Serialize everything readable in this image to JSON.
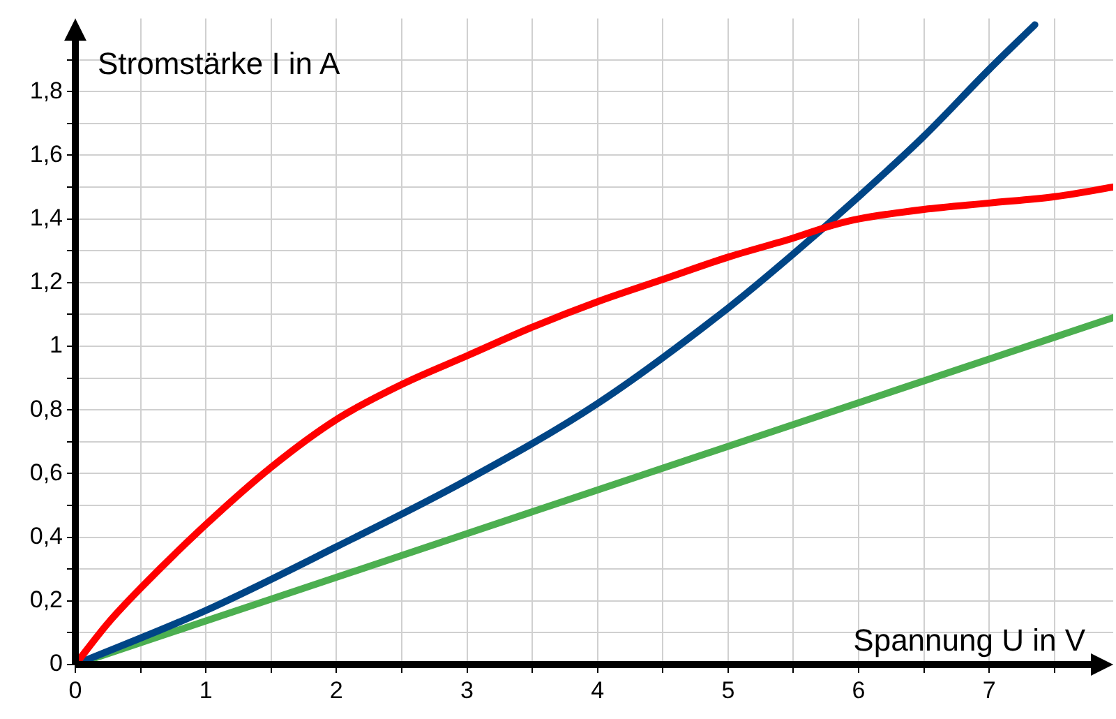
{
  "chart_data": {
    "type": "line",
    "xlabel": "Spannung U in V",
    "ylabel": "Stromstärke I in A",
    "xlim": [
      0,
      7.95
    ],
    "ylim": [
      0,
      2.03
    ],
    "xticks": [
      0,
      {
        "value": 0.5,
        "label": null
      },
      1,
      {
        "value": 1.5,
        "label": null
      },
      2,
      {
        "value": 2.5,
        "label": null
      },
      3,
      {
        "value": 3.5,
        "label": null
      },
      4,
      {
        "value": 4.5,
        "label": null
      },
      5,
      {
        "value": 5.5,
        "label": null
      },
      6,
      {
        "value": 6.5,
        "label": null
      },
      7,
      {
        "value": 7.5,
        "label": null
      }
    ],
    "yticks": [
      0,
      {
        "value": 0.1,
        "label": null
      },
      {
        "value": 0.2,
        "label": "0,2"
      },
      {
        "value": 0.3,
        "label": null
      },
      {
        "value": 0.4,
        "label": "0,4"
      },
      {
        "value": 0.5,
        "label": null
      },
      {
        "value": 0.6,
        "label": "0,6"
      },
      {
        "value": 0.7,
        "label": null
      },
      {
        "value": 0.8,
        "label": "0,8"
      },
      {
        "value": 0.9,
        "label": null
      },
      1,
      {
        "value": 1.1,
        "label": null
      },
      {
        "value": 1.2,
        "label": "1,2"
      },
      {
        "value": 1.3,
        "label": null
      },
      {
        "value": 1.4,
        "label": "1,4"
      },
      {
        "value": 1.5,
        "label": null
      },
      {
        "value": 1.6,
        "label": "1,6"
      },
      {
        "value": 1.7,
        "label": null
      },
      {
        "value": 1.8,
        "label": "1,8"
      },
      {
        "value": 1.9,
        "label": null
      }
    ],
    "grid": true,
    "legend": false,
    "marker": "none",
    "line_style": "solid",
    "series": [
      {
        "color": "#ff0000",
        "x": [
          0,
          0.25,
          0.5,
          1,
          1.5,
          2,
          2.5,
          3,
          3.5,
          4,
          4.5,
          5,
          5.5,
          5.8,
          6,
          6.5,
          7,
          7.5,
          7.95
        ],
        "values": [
          0,
          0.13,
          0.24,
          0.44,
          0.62,
          0.77,
          0.88,
          0.97,
          1.06,
          1.14,
          1.21,
          1.28,
          1.34,
          1.38,
          1.4,
          1.43,
          1.45,
          1.47,
          1.5
        ]
      },
      {
        "color": "#004586",
        "x": [
          0,
          1,
          2,
          3,
          4,
          5,
          5.5,
          6,
          6.5,
          7,
          7.35
        ],
        "values": [
          0,
          0.17,
          0.37,
          0.58,
          0.82,
          1.12,
          1.29,
          1.47,
          1.66,
          1.87,
          2.01
        ]
      },
      {
        "color": "#4caf50",
        "x": [
          0,
          7.95
        ],
        "values": [
          0,
          1.09
        ]
      }
    ]
  }
}
